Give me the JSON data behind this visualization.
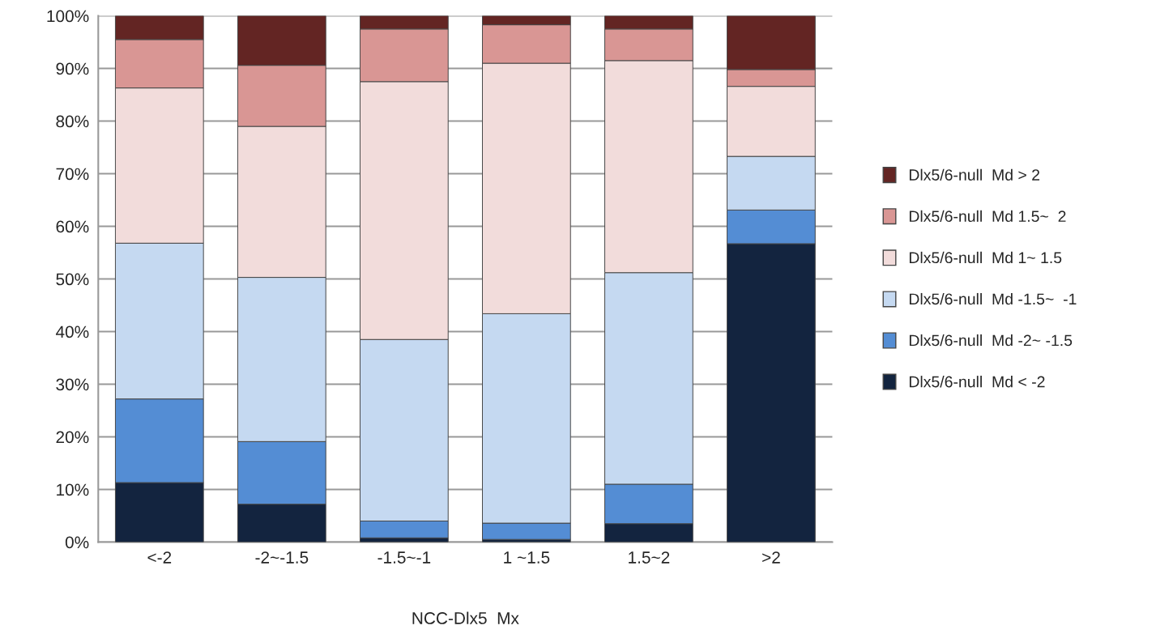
{
  "chart_data": {
    "type": "bar",
    "stacked": true,
    "xlabel": "NCC-Dlx5  Mx",
    "categories": [
      "<-2",
      "-2~-1.5",
      "-1.5~-1",
      "1 ~1.5",
      "1.5~2",
      ">2"
    ],
    "series": [
      {
        "name": "Dlx5/6-null  Md < -2",
        "color": "#13243f",
        "values": [
          11.3,
          7.2,
          0.8,
          0.5,
          3.5,
          56.7
        ]
      },
      {
        "name": "Dlx5/6-null  Md -2~ -1.5",
        "color": "#548dd4",
        "values": [
          15.9,
          11.9,
          3.2,
          3.1,
          7.5,
          6.4
        ]
      },
      {
        "name": "Dlx5/6-null  Md -1.5~  -1",
        "color": "#c5d9f1",
        "values": [
          29.6,
          31.2,
          34.5,
          39.8,
          40.2,
          10.2
        ]
      },
      {
        "name": "Dlx5/6-null  Md 1~ 1.5",
        "color": "#f2dcdb",
        "values": [
          29.5,
          28.7,
          49.0,
          47.6,
          40.3,
          13.3
        ]
      },
      {
        "name": "Dlx5/6-null  Md 1.5~  2",
        "color": "#d99694",
        "values": [
          9.2,
          11.6,
          10.0,
          7.3,
          6.0,
          3.2
        ]
      },
      {
        "name": "Dlx5/6-null  Md > 2",
        "color": "#632523",
        "values": [
          4.5,
          9.4,
          2.5,
          1.7,
          2.5,
          10.2
        ]
      }
    ],
    "ylim": [
      0,
      100
    ],
    "yticks": [
      {
        "value": 0,
        "label": "0%"
      },
      {
        "value": 10,
        "label": "10%"
      },
      {
        "value": 20,
        "label": "20%"
      },
      {
        "value": 30,
        "label": "30%"
      },
      {
        "value": 40,
        "label": "40%"
      },
      {
        "value": 50,
        "label": "50%"
      },
      {
        "value": 60,
        "label": "60%"
      },
      {
        "value": 70,
        "label": "70%"
      },
      {
        "value": 80,
        "label": "80%"
      },
      {
        "value": 90,
        "label": "90%"
      },
      {
        "value": 100,
        "label": "100%"
      }
    ],
    "grid": "y",
    "legend": "right"
  }
}
